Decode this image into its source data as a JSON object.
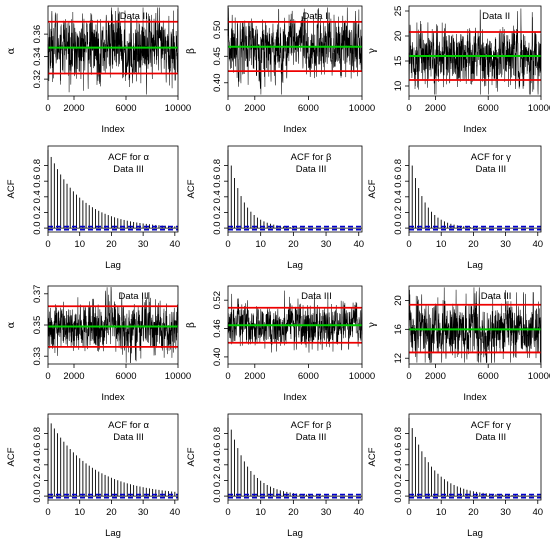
{
  "chart_data": [
    {
      "type": "line",
      "plot": "trace",
      "title": "Data II",
      "xlabel": "Index",
      "ylabel": "α",
      "xlim": [
        0,
        10000
      ],
      "ylim": [
        0.305,
        0.385
      ],
      "xticks": [
        0,
        2000,
        6000,
        10000
      ],
      "yticks": [
        0.32,
        0.34,
        0.36
      ],
      "n_iterations": 10000,
      "mean": 0.348,
      "ci_lower": 0.325,
      "ci_upper": 0.371,
      "series": [
        {
          "values": [
            0.348,
            0.358,
            0.339,
            0.352,
            0.344,
            0.361,
            0.335,
            0.349,
            0.355,
            0.341,
            0.347
          ]
        }
      ],
      "mean_color": "#00cc00",
      "ci_color": "#ee0000"
    },
    {
      "type": "line",
      "plot": "trace",
      "title": "Data II",
      "xlabel": "Index",
      "ylabel": "β",
      "xlim": [
        0,
        10000
      ],
      "ylim": [
        0.375,
        0.545
      ],
      "xticks": [
        0,
        2000,
        6000,
        10000
      ],
      "yticks": [
        0.4,
        0.45,
        0.5
      ],
      "n_iterations": 10000,
      "mean": 0.468,
      "ci_lower": 0.422,
      "ci_upper": 0.515,
      "series": [
        {
          "values": [
            0.468,
            0.48,
            0.455,
            0.472,
            0.46,
            0.49,
            0.445,
            0.47,
            0.462,
            0.475,
            0.466
          ]
        }
      ],
      "mean_color": "#00cc00",
      "ci_color": "#ee0000"
    },
    {
      "type": "line",
      "plot": "trace",
      "title": "Data II",
      "xlabel": "Index",
      "ylabel": "γ",
      "xlim": [
        0,
        10000
      ],
      "ylim": [
        8,
        26
      ],
      "xticks": [
        0,
        2000,
        6000,
        10000
      ],
      "yticks": [
        10,
        15,
        20,
        25
      ],
      "n_iterations": 10000,
      "mean": 16,
      "ci_lower": 11.2,
      "ci_upper": 20.8,
      "series": [
        {
          "values": [
            16,
            17,
            15,
            16.5,
            15.5,
            18,
            14,
            16,
            17,
            15,
            16
          ]
        }
      ],
      "mean_color": "#00cc00",
      "ci_color": "#ee0000"
    },
    {
      "type": "bar",
      "plot": "acf",
      "title": [
        "ACF for α",
        "Data III"
      ],
      "xlabel": "Lag",
      "ylabel": "ACF",
      "xlim": [
        0,
        41
      ],
      "ylim": [
        -0.05,
        1.05
      ],
      "xticks": [
        0,
        10,
        20,
        30,
        40
      ],
      "yticks": [
        0.0,
        0.2,
        0.4,
        0.6,
        0.8
      ],
      "lags": [
        0,
        40
      ],
      "decay": 0.91,
      "confidence_band": 0.02,
      "band_color": "#0000cc"
    },
    {
      "type": "bar",
      "plot": "acf",
      "title": [
        "ACF for β",
        "Data III"
      ],
      "xlabel": "Lag",
      "ylabel": "ACF",
      "xlim": [
        0,
        41
      ],
      "ylim": [
        -0.05,
        1.05
      ],
      "xticks": [
        0,
        10,
        20,
        30,
        40
      ],
      "yticks": [
        0.0,
        0.2,
        0.4,
        0.6,
        0.8
      ],
      "lags": [
        0,
        40
      ],
      "decay": 0.8,
      "confidence_band": 0.02,
      "band_color": "#0000cc"
    },
    {
      "type": "bar",
      "plot": "acf",
      "title": [
        "ACF for γ",
        "Data III"
      ],
      "xlabel": "Lag",
      "ylabel": "ACF",
      "xlim": [
        0,
        41
      ],
      "ylim": [
        -0.05,
        1.05
      ],
      "xticks": [
        0,
        10,
        20,
        30,
        40
      ],
      "yticks": [
        0.0,
        0.2,
        0.4,
        0.6,
        0.8
      ],
      "lags": [
        0,
        40
      ],
      "decay": 0.8,
      "confidence_band": 0.02,
      "band_color": "#0000cc"
    },
    {
      "type": "line",
      "plot": "trace",
      "title": "Data III",
      "xlabel": "Index",
      "ylabel": "α",
      "xlim": [
        0,
        10000
      ],
      "ylim": [
        0.325,
        0.375
      ],
      "xticks": [
        0,
        2000,
        6000,
        10000
      ],
      "yticks": [
        0.33,
        0.35,
        0.37
      ],
      "n_iterations": 10000,
      "mean": 0.349,
      "ci_lower": 0.336,
      "ci_upper": 0.362,
      "series": [
        {
          "values": [
            0.349,
            0.355,
            0.343,
            0.351,
            0.346,
            0.358,
            0.34,
            0.35,
            0.353,
            0.344,
            0.348
          ]
        }
      ],
      "mean_color": "#00cc00",
      "ci_color": "#ee0000"
    },
    {
      "type": "line",
      "plot": "trace",
      "title": "Data III",
      "xlabel": "Index",
      "ylabel": "β",
      "xlim": [
        0,
        10000
      ],
      "ylim": [
        0.385,
        0.55
      ],
      "xticks": [
        0,
        2000,
        6000,
        10000
      ],
      "yticks": [
        0.4,
        0.46,
        0.52
      ],
      "n_iterations": 10000,
      "mean": 0.467,
      "ci_lower": 0.43,
      "ci_upper": 0.504,
      "series": [
        {
          "values": [
            0.467,
            0.48,
            0.452,
            0.47,
            0.458,
            0.49,
            0.445,
            0.468,
            0.46,
            0.476,
            0.465
          ]
        }
      ],
      "mean_color": "#00cc00",
      "ci_color": "#ee0000"
    },
    {
      "type": "line",
      "plot": "trace",
      "title": "Data III",
      "xlabel": "Index",
      "ylabel": "γ",
      "xlim": [
        0,
        10000
      ],
      "ylim": [
        11.2,
        22
      ],
      "xticks": [
        0,
        2000,
        6000,
        10000
      ],
      "yticks": [
        12,
        16,
        20
      ],
      "n_iterations": 10000,
      "mean": 16,
      "ci_lower": 12.8,
      "ci_upper": 19.4,
      "series": [
        {
          "values": [
            16,
            17,
            15,
            16.5,
            15.5,
            18,
            14,
            16,
            17,
            15,
            16
          ]
        }
      ],
      "mean_color": "#00cc00",
      "ci_color": "#ee0000"
    },
    {
      "type": "bar",
      "plot": "acf",
      "title": [
        "ACF for α",
        "Data III"
      ],
      "xlabel": "Lag",
      "ylabel": "ACF",
      "xlim": [
        0,
        41
      ],
      "ylim": [
        -0.05,
        1.05
      ],
      "xticks": [
        0,
        10,
        20,
        30,
        40
      ],
      "yticks": [
        0.0,
        0.2,
        0.4,
        0.6,
        0.8
      ],
      "lags": [
        0,
        40
      ],
      "decay": 0.93,
      "confidence_band": 0.02,
      "band_color": "#0000cc"
    },
    {
      "type": "bar",
      "plot": "acf",
      "title": [
        "ACF for β",
        "Data III"
      ],
      "xlabel": "Lag",
      "ylabel": "ACF",
      "xlim": [
        0,
        41
      ],
      "ylim": [
        -0.05,
        1.05
      ],
      "xticks": [
        0,
        10,
        20,
        30,
        40
      ],
      "yticks": [
        0.0,
        0.2,
        0.4,
        0.6,
        0.8
      ],
      "lags": [
        0,
        40
      ],
      "decay": 0.85,
      "confidence_band": 0.02,
      "band_color": "#0000cc"
    },
    {
      "type": "bar",
      "plot": "acf",
      "title": [
        "ACF for γ",
        "Data III"
      ],
      "xlabel": "Lag",
      "ylabel": "ACF",
      "xlim": [
        0,
        41
      ],
      "ylim": [
        -0.05,
        1.05
      ],
      "xticks": [
        0,
        10,
        20,
        30,
        40
      ],
      "yticks": [
        0.0,
        0.2,
        0.4,
        0.6,
        0.8
      ],
      "lags": [
        0,
        40
      ],
      "decay": 0.87,
      "confidence_band": 0.02,
      "band_color": "#0000cc"
    }
  ]
}
